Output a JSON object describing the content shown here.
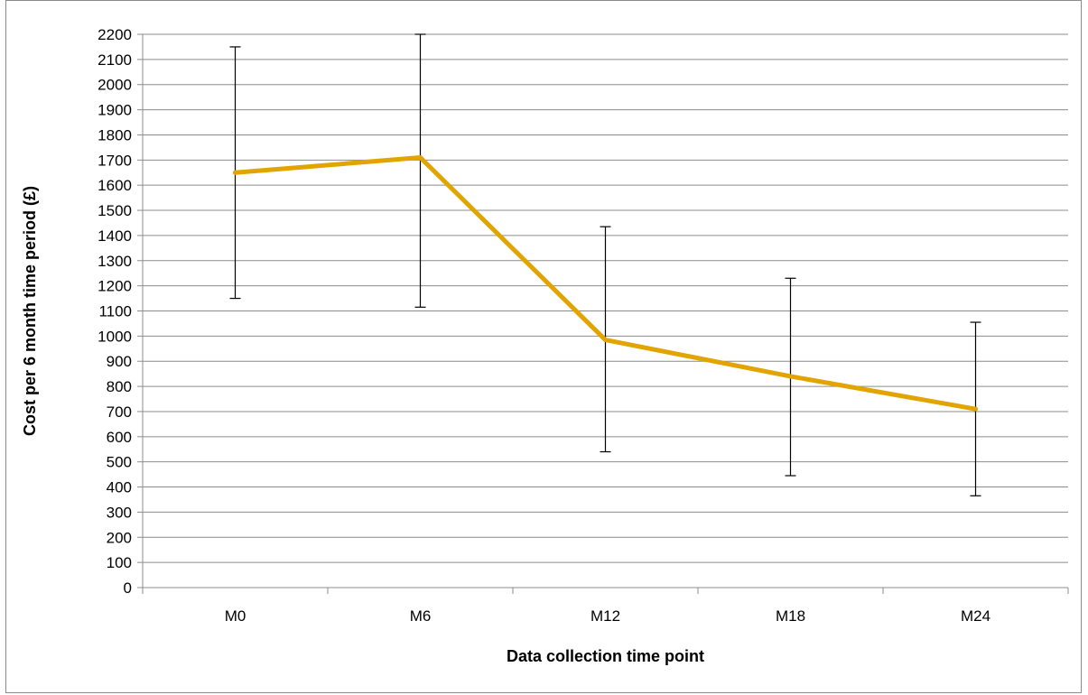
{
  "chart_data": {
    "type": "line",
    "title": "",
    "xlabel": "Data collection time point",
    "ylabel": "Cost per 6 month time period (£)",
    "categories": [
      "M0",
      "M6",
      "M12",
      "M18",
      "M24"
    ],
    "ylim": [
      0,
      2200
    ],
    "yticks": [
      0,
      100,
      200,
      300,
      400,
      500,
      600,
      700,
      800,
      900,
      1000,
      1100,
      1200,
      1300,
      1400,
      1500,
      1600,
      1700,
      1800,
      1900,
      2000,
      2100,
      2200
    ],
    "grid": true,
    "legend": "none",
    "series": [
      {
        "values": [
          1650,
          1710,
          985,
          840,
          710
        ],
        "error_low": [
          1150,
          1115,
          540,
          445,
          365
        ],
        "error_high": [
          2150,
          2200,
          1435,
          1230,
          1055
        ],
        "color": "#E1A400"
      }
    ],
    "error_bar_color": "#000000",
    "grid_color": "#8c8c8c"
  }
}
